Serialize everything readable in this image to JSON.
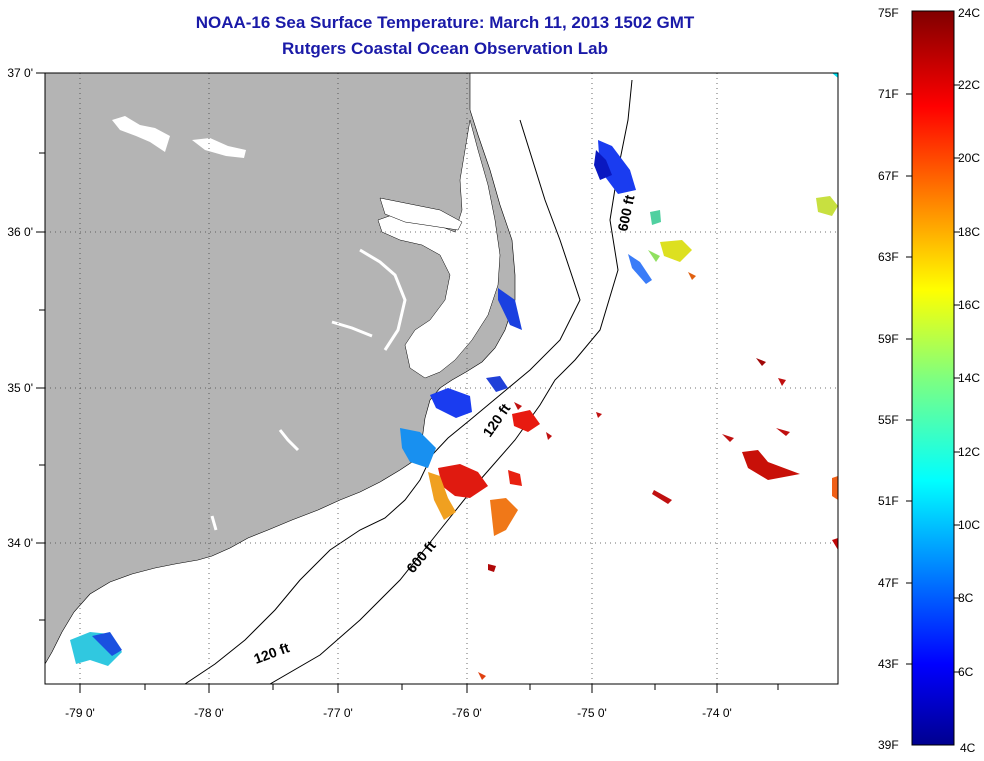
{
  "title": "NOAA-16 Sea Surface Temperature:  March 11, 2013 1502 GMT",
  "subtitle": "Rutgers Coastal Ocean Observation Lab",
  "lat_labels": [
    "37 0'",
    "36 0'",
    "35 0'",
    "34 0'"
  ],
  "lon_labels": [
    "-79 0'",
    "-78 0'",
    "-77 0'",
    "-76 0'",
    "-75 0'",
    "-74 0'"
  ],
  "isobaths": [
    "600 ft",
    "120 ft",
    "600 ft",
    "120 ft"
  ],
  "colorbar": {
    "fahrenheit": [
      "75F",
      "71F",
      "67F",
      "63F",
      "59F",
      "55F",
      "51F",
      "47F",
      "43F",
      "39F"
    ],
    "celsius": [
      "24C",
      "22C",
      "20C",
      "18C",
      "16C",
      "14C",
      "12C",
      "10C",
      "8C",
      "6C",
      "4C"
    ]
  },
  "colors": {
    "land": "#b4b4b4",
    "title": "#1a1aa8",
    "cold": "#00008f",
    "warm": "#800000"
  }
}
